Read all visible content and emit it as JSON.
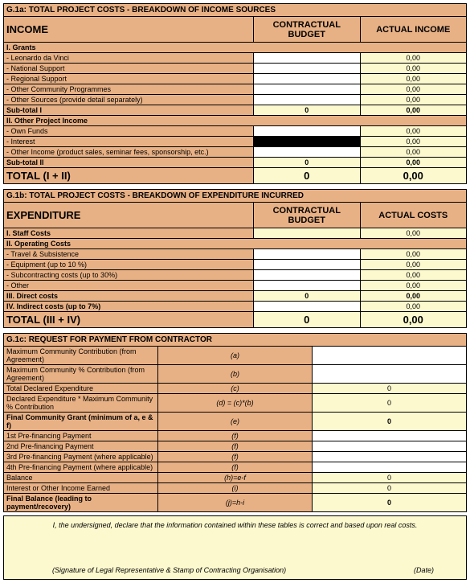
{
  "colors": {
    "peach": "#e8b185",
    "yellow": "#fcf9cf",
    "white": "#ffffff",
    "border": "#000000"
  },
  "fonts": {
    "base_size_pt": 9,
    "header_size_pt": 11,
    "total_size_pt": 13
  },
  "g1a": {
    "title": "G.1a: TOTAL PROJECT COSTS - BREAKDOWN OF INCOME SOURCES",
    "col_label": "INCOME",
    "col_budget": "CONTRACTUAL BUDGET",
    "col_actual": "ACTUAL INCOME",
    "grants_header": "I. Grants",
    "grants": [
      {
        "label": "- Leonardo da Vinci",
        "budget": "",
        "actual": "0,00"
      },
      {
        "label": "- National Support",
        "budget": "",
        "actual": "0,00"
      },
      {
        "label": "- Regional Support",
        "budget": "",
        "actual": "0,00"
      },
      {
        "label": "- Other Community Programmes",
        "budget": "",
        "actual": "0,00"
      },
      {
        "label": "- Other Sources (provide detail separately)",
        "budget": "",
        "actual": "0,00"
      }
    ],
    "subtotal1_label": "Sub-total I",
    "subtotal1_budget": "0",
    "subtotal1_actual": "0,00",
    "other_header": "II. Other Project Income",
    "other": [
      {
        "label": "- Own Funds",
        "budget": "",
        "actual": "0,00",
        "black": false
      },
      {
        "label": "- Interest",
        "budget": "",
        "actual": "0,00",
        "black": true
      },
      {
        "label": "- Other Income (product sales, seminar fees, sponsorship, etc.)",
        "budget": "",
        "actual": "0,00",
        "black": false
      }
    ],
    "subtotal2_label": "Sub-total II",
    "subtotal2_budget": "0",
    "subtotal2_actual": "0,00",
    "total_label": "TOTAL (I + II)",
    "total_budget": "0",
    "total_actual": "0,00"
  },
  "g1b": {
    "title": "G.1b: TOTAL PROJECT COSTS - BREAKDOWN OF EXPENDITURE INCURRED",
    "col_label": "EXPENDITURE",
    "col_budget": "CONTRACTUAL BUDGET",
    "col_actual": "ACTUAL COSTS",
    "staff_header": "I. Staff Costs",
    "staff_budget": "",
    "staff_actual": "0,00",
    "op_header": "II. Operating Costs",
    "op": [
      {
        "label": "- Travel & Subsistence",
        "budget": "",
        "actual": "0,00"
      },
      {
        "label": "- Equipment (up to 10 %)",
        "budget": "",
        "actual": "0,00"
      },
      {
        "label": "- Subcontracting costs (up to 30%)",
        "budget": "",
        "actual": "0,00"
      },
      {
        "label": "- Other",
        "budget": "",
        "actual": "0,00"
      }
    ],
    "direct_label": "III. Direct costs",
    "direct_budget": "0",
    "direct_actual": "0,00",
    "indirect_label": "IV. Indirect costs (up to 7%)",
    "indirect_budget": "",
    "indirect_actual": "0,00",
    "total_label": "TOTAL (III + IV)",
    "total_budget": "0",
    "total_actual": "0,00"
  },
  "g1c": {
    "title": "G.1c: REQUEST FOR PAYMENT FROM CONTRACTOR",
    "rows": [
      {
        "label": "Maximum Community Contribution (from Agreement)",
        "letter": "(a)",
        "val": "",
        "calc": false,
        "bold": false
      },
      {
        "label": "Maximum Community % Contribution (from Agreement)",
        "letter": "(b)",
        "val": "",
        "calc": false,
        "bold": false
      },
      {
        "label": "Total Declared Expenditure",
        "letter": "(c)",
        "val": "0",
        "calc": true,
        "bold": false
      },
      {
        "label": "Declared Expenditure * Maximum Community % Contribution",
        "letter": "(d) = (c)*(b)",
        "val": "0",
        "calc": true,
        "bold": false
      },
      {
        "label": "Final Community Grant (minimum of a, e & f)",
        "letter": "(e)",
        "val": "0",
        "calc": true,
        "bold": true
      },
      {
        "label": "1st Pre-financing Payment",
        "letter": "(f)",
        "val": "",
        "calc": false,
        "bold": false
      },
      {
        "label": "2nd Pre-financing Payment",
        "letter": "(f)",
        "val": "",
        "calc": false,
        "bold": false
      },
      {
        "label": "3rd Pre-financing Payment (where applicable)",
        "letter": "(f)",
        "val": "",
        "calc": false,
        "bold": false
      },
      {
        "label": "4th Pre-financing Payment (where applicable)",
        "letter": "(f)",
        "val": "",
        "calc": false,
        "bold": false
      },
      {
        "label": "Balance",
        "letter": "(h)=e-f",
        "val": "0",
        "calc": true,
        "bold": false
      },
      {
        "label": "Interest or Other Income Earned",
        "letter": "(i)",
        "val": "0",
        "calc": true,
        "bold": false
      },
      {
        "label": "Final Balance (leading to payment/recovery)",
        "letter": "(j)=h-i",
        "val": "0",
        "calc": true,
        "bold": true
      }
    ]
  },
  "declaration": {
    "text": "I, the undersigned, declare that the information contained within these tables is correct and based upon real costs.",
    "sig": "(Signature of Legal Representative & Stamp of Contracting Organisation)",
    "date": "(Date)"
  }
}
